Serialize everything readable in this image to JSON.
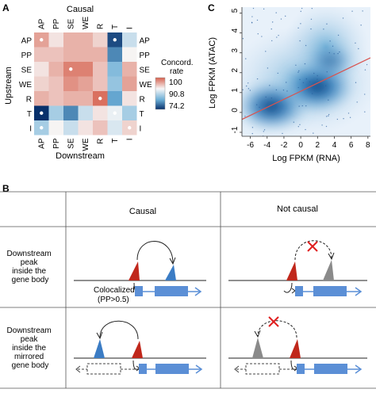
{
  "panel_a": {
    "label": "A",
    "top_title": "Causal",
    "left_title": "Upstream",
    "bottom_title": "Downstream",
    "categories": [
      "AP",
      "PP",
      "SE",
      "WE",
      "R",
      "T",
      "I"
    ],
    "legend_title_1": "Concord.",
    "legend_title_2": "rate",
    "legend_ticks": [
      "100",
      "90.8",
      "74.2"
    ],
    "colors": {
      "high": "#d6604d",
      "mid": "#f7f7f7",
      "low": "#08306b"
    }
  },
  "panel_c": {
    "label": "C",
    "xlabel": "Log FPKM (RNA)",
    "ylabel": "Log FPKM (ATAC)",
    "xticks": [
      "-6",
      "-4",
      "-2",
      "0",
      "2",
      "4",
      "6",
      "8"
    ],
    "yticks": [
      "-1",
      "0",
      "1",
      "2",
      "3",
      "4",
      "5"
    ],
    "colors": {
      "density": "#2171b5",
      "fit_line": "#d9534f"
    }
  },
  "panel_b": {
    "label": "B",
    "col_causal": "Causal",
    "col_not_causal": "Not causal",
    "row1_text": [
      "Downstream",
      "peak",
      "inside the",
      "gene body"
    ],
    "row2_text": [
      "Downstream",
      "peak",
      "inside the",
      "mirrored",
      "gene body"
    ],
    "colocalized_text": [
      "Colocalized",
      "(PP>0.5)"
    ],
    "colors": {
      "upstream_peak": "#c0271b",
      "downstream_peak": "#3b7cc4",
      "gray_peak": "#8a8a8a",
      "gene": "#5b8fd6",
      "cross": "#e02020"
    }
  },
  "chart_data": [
    {
      "type": "heatmap",
      "title": "Causal",
      "xlabel": "Downstream",
      "ylabel": "Upstream",
      "categories": [
        "AP",
        "PP",
        "SE",
        "WE",
        "R",
        "T",
        "I"
      ],
      "value_range": [
        74.2,
        100
      ],
      "values": [
        [
          96,
          92,
          95,
          95,
          93,
          76,
          88
        ],
        [
          94,
          94,
          95,
          95,
          95,
          80,
          91
        ],
        [
          92,
          95,
          98,
          98,
          94,
          84,
          95
        ],
        [
          93,
          94,
          97,
          96,
          94,
          85,
          96
        ],
        [
          95,
          94,
          95,
          95,
          99,
          82,
          92
        ],
        [
          74.2,
          86,
          80,
          88,
          92,
          90,
          86
        ],
        [
          86,
          91,
          88,
          92,
          94,
          89,
          93
        ]
      ],
      "marked_cells": [
        [
          0,
          0
        ],
        [
          0,
          5
        ],
        [
          2,
          2
        ],
        [
          4,
          4
        ],
        [
          5,
          0
        ],
        [
          5,
          5
        ],
        [
          6,
          0
        ],
        [
          6,
          6
        ]
      ]
    },
    {
      "type": "scatter",
      "xlabel": "Log FPKM (RNA)",
      "ylabel": "Log FPKM (ATAC)",
      "xlim": [
        -7,
        8.3
      ],
      "ylim": [
        -1.2,
        5.3
      ],
      "density_clusters": [
        {
          "x": -3.5,
          "y": 0.3,
          "weight": 1.0
        },
        {
          "x": 2.0,
          "y": 1.3,
          "weight": 1.0
        },
        {
          "x": 3.5,
          "y": 2.6,
          "weight": 0.6
        }
      ],
      "fit_line": {
        "x": [
          -7,
          8.3
        ],
        "y": [
          -0.35,
          2.75
        ]
      }
    }
  ]
}
